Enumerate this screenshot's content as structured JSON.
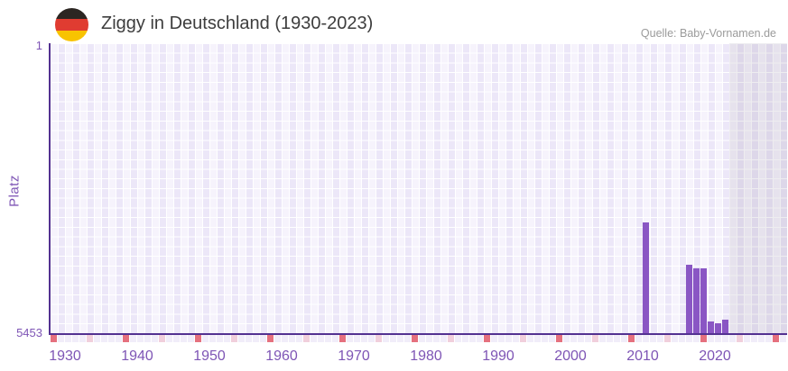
{
  "header": {
    "title": "Ziggy in Deutschland (1930-2023)",
    "source": "Quelle: Baby-Vornamen.de",
    "flag_colors": [
      "#2b2622",
      "#e03c31",
      "#f8c300"
    ]
  },
  "chart_data": {
    "type": "bar",
    "title": "Ziggy in Deutschland (1930-2023)",
    "xlabel": "",
    "ylabel": "Platz",
    "y_axis": {
      "top_tick_label": "1",
      "bottom_tick_label": "5453",
      "min": 1,
      "max": 5453,
      "inverted": true
    },
    "x_axis": {
      "tick_years": [
        1930,
        1940,
        1950,
        1960,
        1970,
        1980,
        1990,
        2000,
        2010,
        2020
      ],
      "range_start": 1928,
      "range_end": 2030
    },
    "series": [
      {
        "name": "Platz",
        "points": [
          {
            "year": 2010,
            "rank": 3340
          },
          {
            "year": 2016,
            "rank": 4150
          },
          {
            "year": 2017,
            "rank": 4220
          },
          {
            "year": 2018,
            "rank": 4210
          },
          {
            "year": 2019,
            "rank": 5230
          },
          {
            "year": 2020,
            "rank": 5270
          },
          {
            "year": 2021,
            "rank": 5190
          }
        ]
      }
    ],
    "no_data_region_start_year": 2022,
    "decade_marker_years": [
      1928,
      1938,
      1948,
      1958,
      1968,
      1978,
      1988,
      1998,
      2008,
      2018,
      2028
    ],
    "half_decade_marker_years": [
      1933,
      1943,
      1953,
      1963,
      1973,
      1983,
      1993,
      2003,
      2013,
      2023
    ],
    "colors": {
      "bar": "#8a56c4",
      "axis_line": "#533191",
      "tick_label": "#7e55b5",
      "grid_column_light": "#f6f3fc",
      "grid_column_dark": "#ece7f8",
      "no_data_overlay": "rgba(100,95,120,0.11)",
      "decade_marker_cell": "#e5707e",
      "half_decade_marker_cell": "#f1cfdc",
      "strip_cell_default": "#f1edf9"
    },
    "legend": null,
    "grid": true
  }
}
